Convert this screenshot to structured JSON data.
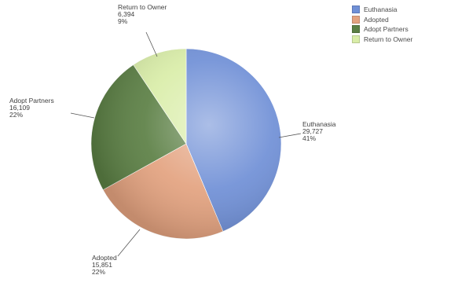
{
  "chart_data": {
    "type": "pie",
    "series": [
      {
        "name": "Euthanasia",
        "value": 29727,
        "percent_label": "41%",
        "value_label": "29,727",
        "color": "#6f8fd6"
      },
      {
        "name": "Adopted",
        "value": 15851,
        "percent_label": "22%",
        "value_label": "15,851",
        "color": "#e3a27f"
      },
      {
        "name": "Adopt Partners",
        "value": 16109,
        "percent_label": "22%",
        "value_label": "16,109",
        "color": "#5b7f44"
      },
      {
        "name": "Return to Owner",
        "value": 6394,
        "percent_label": "9%",
        "value_label": "6,394",
        "color": "#d9eda8"
      }
    ],
    "legend_placement": "top-right"
  }
}
